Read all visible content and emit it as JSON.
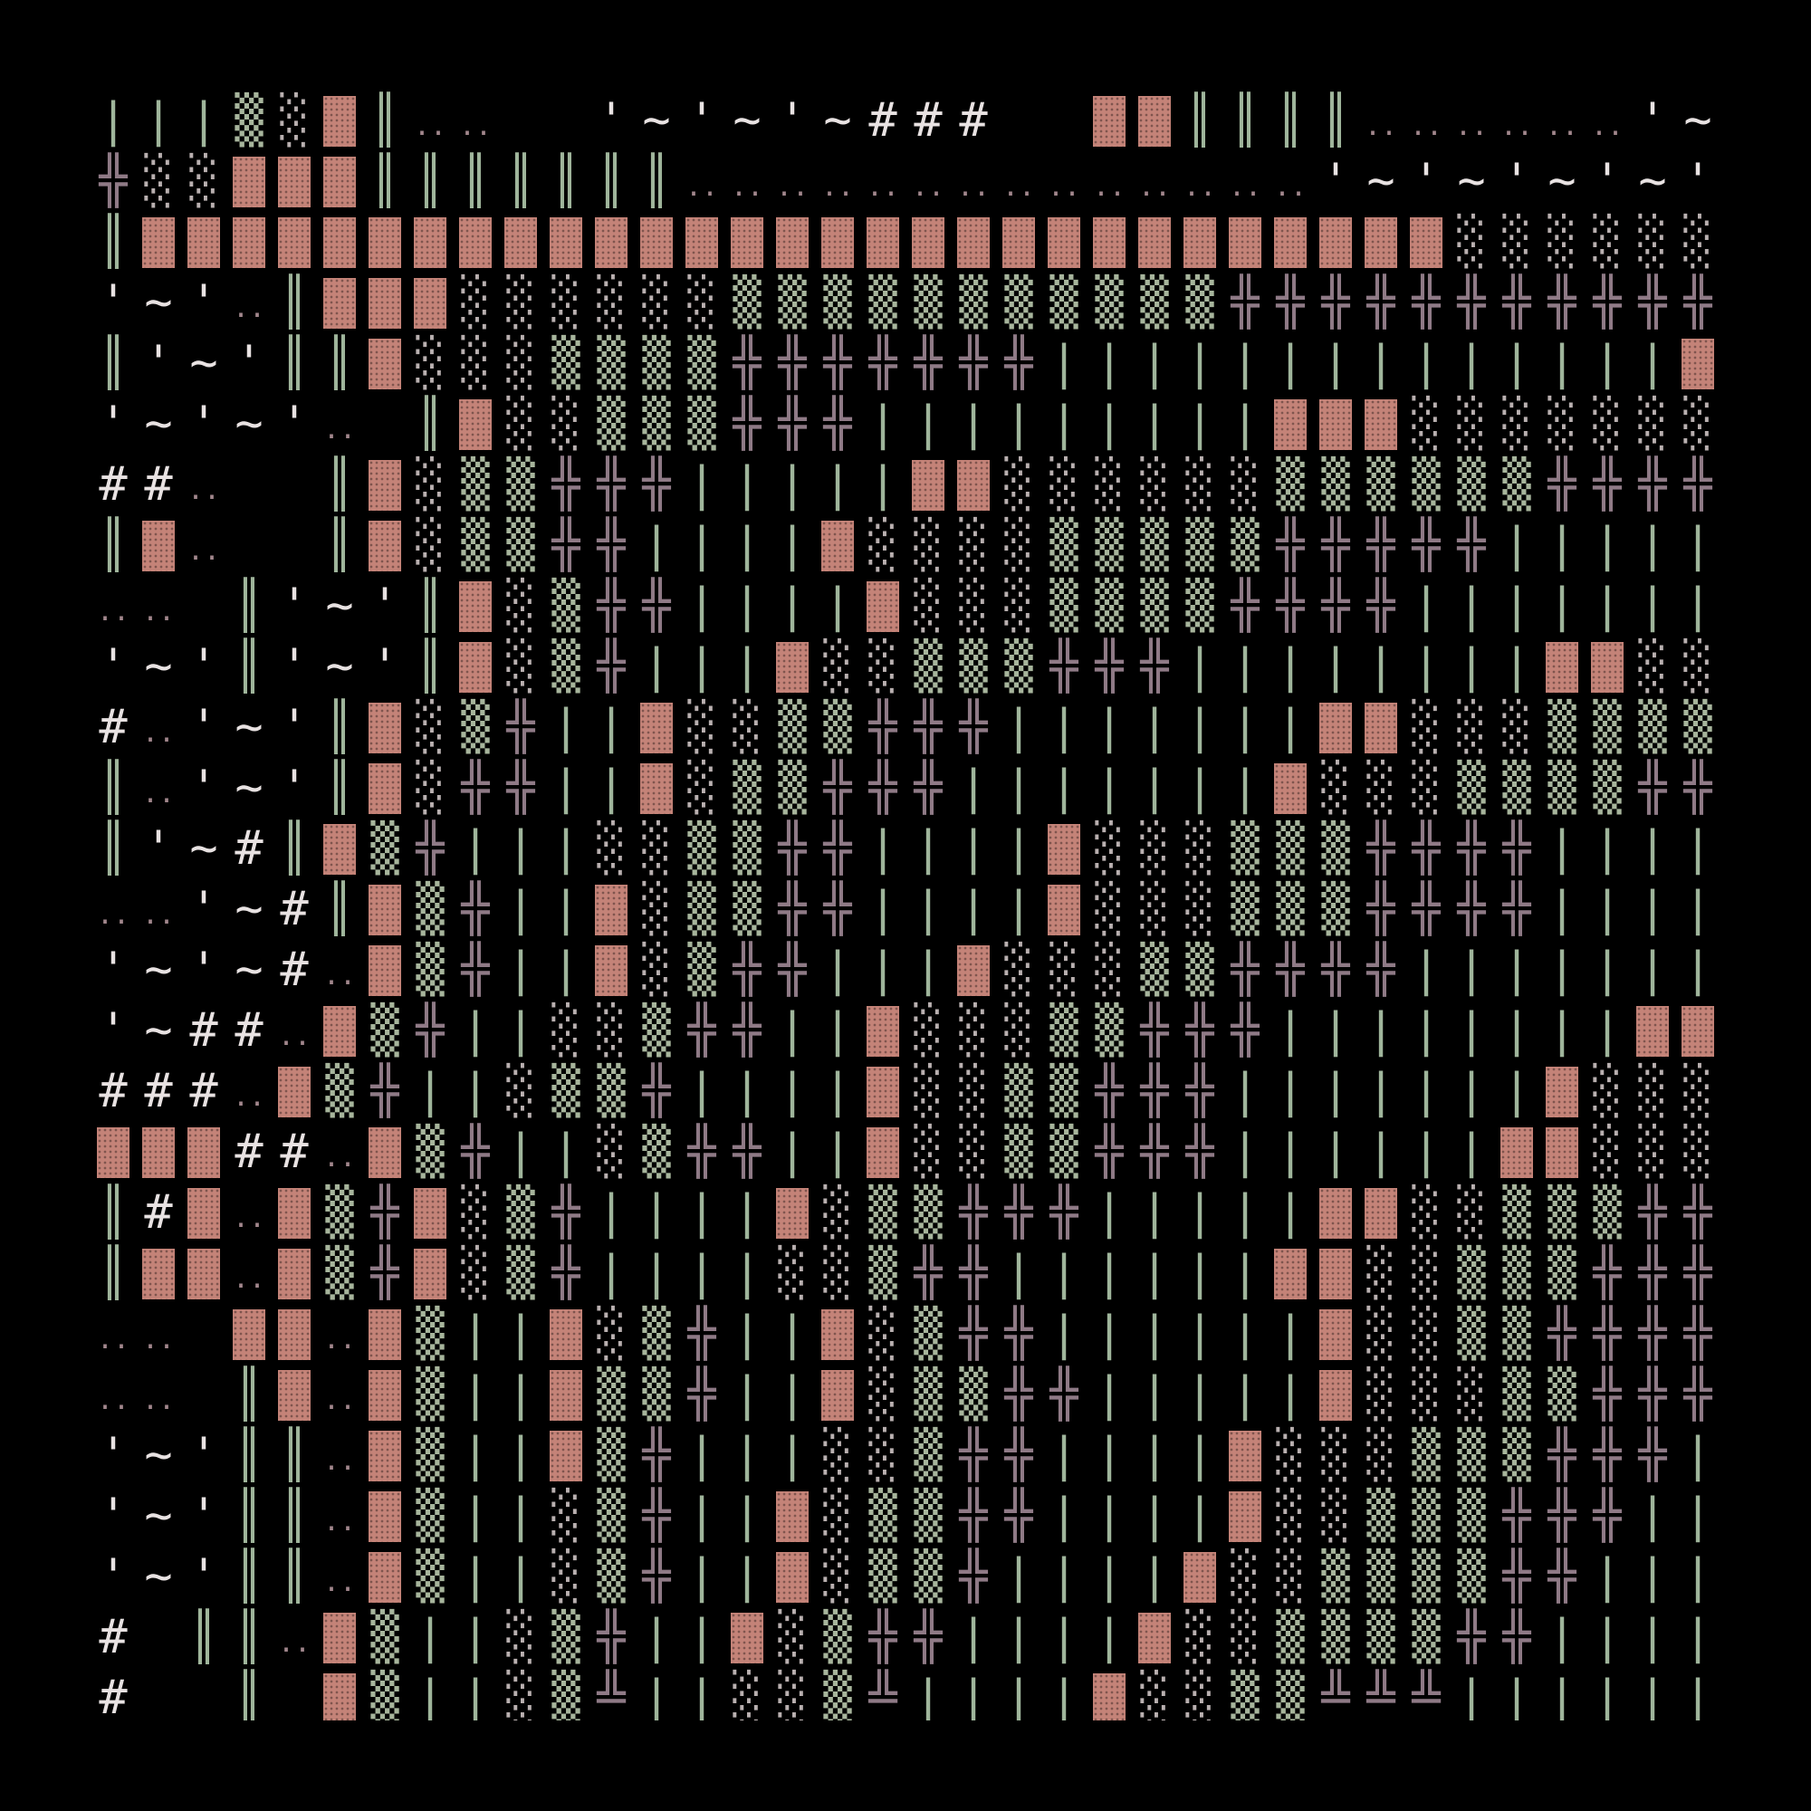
{
  "palette": {
    "background": "#000000",
    "block": "#c48378",
    "vbar": "#9fb59b",
    "cross": "#8f7a86",
    "dots": "#b9b0b0",
    "text": "#e8e2e2",
    "dense": "#a7b59c",
    "light": "#d8d4d4",
    "ellipsis": "#a1868c"
  },
  "rows": [
    "|||▒░█║..  '~'~'~###  ██║║║║......'~'~'~'~'~'~'~'###",
    "╬░░███║║║║║║║..............'~'~'~'~'~'~'~'~'~'",
    "║█████████████████████████████░░░░░░░",
    "'~'.║███░░░░░░▒▒▒▒▒▒▒▒▒▒▒╬╬╬╬╬╬╬╬╬╬╬╬",
    "║'~'║║█░░░▒▒▒▒╬╬╬╬╬╬╬||||||||||||||███████░░",
    "'~'~'. ║█░░▒▒▒╬╬╬|||||||||███░░░░░░░░░░▒▒▒▒▒▒▒",
    "##.  ║█░▒▒╬╬╬|||||██░░░░░░▒▒▒▒▒▒╬╬╬╬╬╬╬╬||",
    "║█.  ║█░▒▒╬╬||||█░░░░▒▒▒▒▒╬╬╬╬╬|||||||||||||███",
    ".. ║'~'║█░▒╬╬||||█░░░▒▒▒▒╬╬╬╬||||||||||███░░░░░░",
    "'~'║'~'║█░▒╬|||█░░▒▒▒╬╬╬||||||||██░░░░░▒▒▒▒▒",
    "#.'~'║█░▒╬||█░░▒▒╬╬╬|||||||██░░░▒▒▒▒▒▒╬╬╬╬╬",
    "║.'~'║█░╬╬||█░▒▒╬╬╬|||||||█░░░▒▒▒▒╬╬╬╬╬|||||",
    "║'~#║█▒╬|||░░▒▒╬╬||||█░░░▒▒▒╬╬╬╬|||||||||||██",
    "..'~#║█▒╬||█░▒▒╬╬||||█░░░▒▒▒╬╬╬╬||||||||██░░░░",
    "'~'~#.█▒╬||█░▒╬╬|||█░░░▒▒╬╬╬╬|||||||||██░░░░░",
    "'~##.█▒╬||░░▒╬╬||█░░░▒▒╬╬╬||||||||██░░░░▒▒▒",
    "###.█▒╬||░▒▒╬||||█░░▒▒╬╬╬|||||||█░░░▒▒▒▒╬╬",
    "███##.█▒╬||░▒╬╬||█░░▒▒╬╬╬||||||██░░░▒▒▒▒╬╬╬╬|",
    "║#█.█▒╬█░▒╬||||█░▒▒╬╬╬|||||██░░▒▒▒╬╬╬╬||||",
    "║██.█▒╬█░▒╬||||░░▒╬╬||||||██░░▒▒▒╬╬╬|||||||||█",
    ".. ██.█▒||█░▒╬||█░▒╬╬||||||█░░▒▒╬╬╬╬|||||||█",
    ".. ║█.█▒||█▒▒╬||█░▒▒╬╬|||||█░░░▒▒╬╬╬|||||||||██░",
    "'~'║║.█▒||█▒╬|||░░▒╬╬||||█░░░▒▒▒╬╬╬||||||||██░░",
    "'~'║║.█▒||░▒╬||█░▒▒╬╬||||█░░▒▒▒╬╬╬||||||||██░░",
    "'~'║║.█▒||░▒╬||█░▒▒╬||||█░░▒▒▒▒╬╬|||||||||██░░▒",
    "# ║║.█▒||░▒╬||█░▒╬╬||||█░░▒▒▒▒╬╬|||||||||██░░▒▒",
    "#  ║ █▒||░▒╩||░░▒╩||||█░░▒▒╩╩╩||||||█░█░░▒▒▒▒╩"
  ]
}
